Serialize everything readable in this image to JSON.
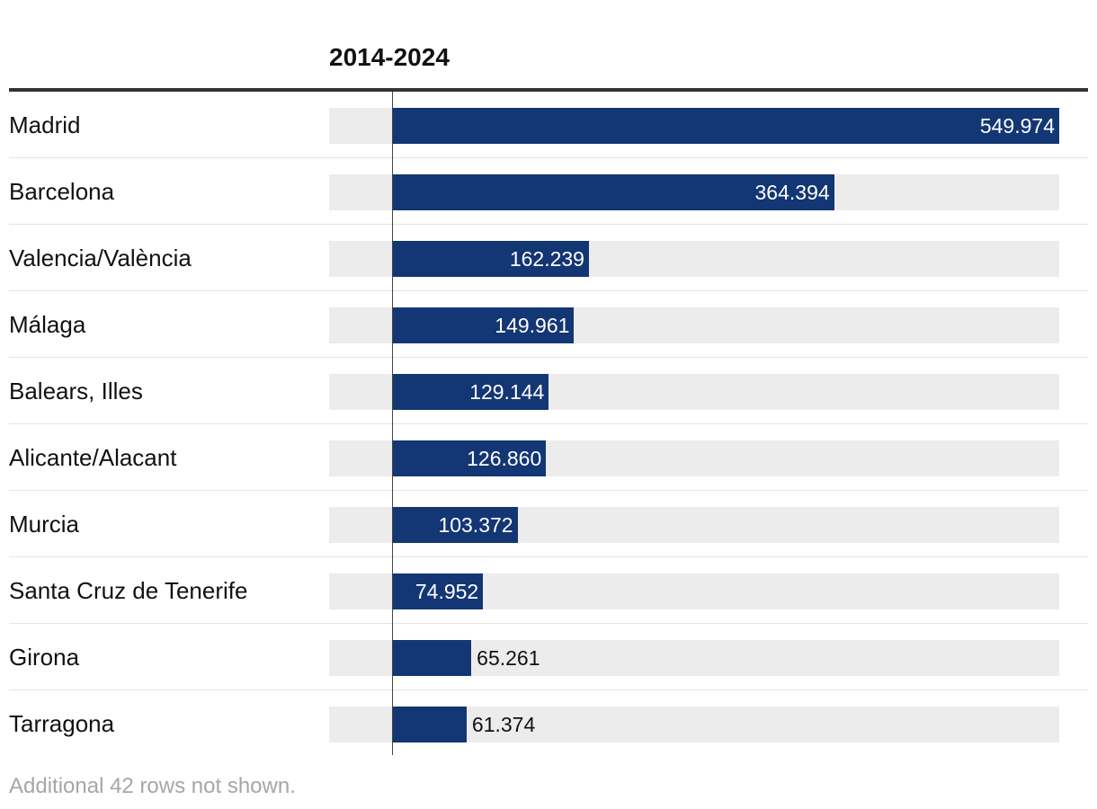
{
  "chart_data": {
    "type": "bar",
    "orientation": "horizontal",
    "title": "2014-2024",
    "categories": [
      "Madrid",
      "Barcelona",
      "Valencia/València",
      "Málaga",
      "Balears, Illes",
      "Alicante/Alacant",
      "Murcia",
      "Santa Cruz de Tenerife",
      "Girona",
      "Tarragona"
    ],
    "values": [
      549974,
      364394,
      162239,
      149961,
      129144,
      126860,
      103372,
      74952,
      65261,
      61374
    ],
    "value_labels": [
      "549.974",
      "364.394",
      "162.239",
      "149.961",
      "129.144",
      "126.860",
      "103.372",
      "74.952",
      "65.261",
      "61.374"
    ],
    "xlim": [
      -52000,
      549974
    ],
    "grid": false,
    "footnote": "Additional 42 rows not shown.",
    "colors": {
      "bar": "#133674",
      "track": "#ececec",
      "label_inside": "#ffffff",
      "label_outside": "#111111"
    }
  }
}
